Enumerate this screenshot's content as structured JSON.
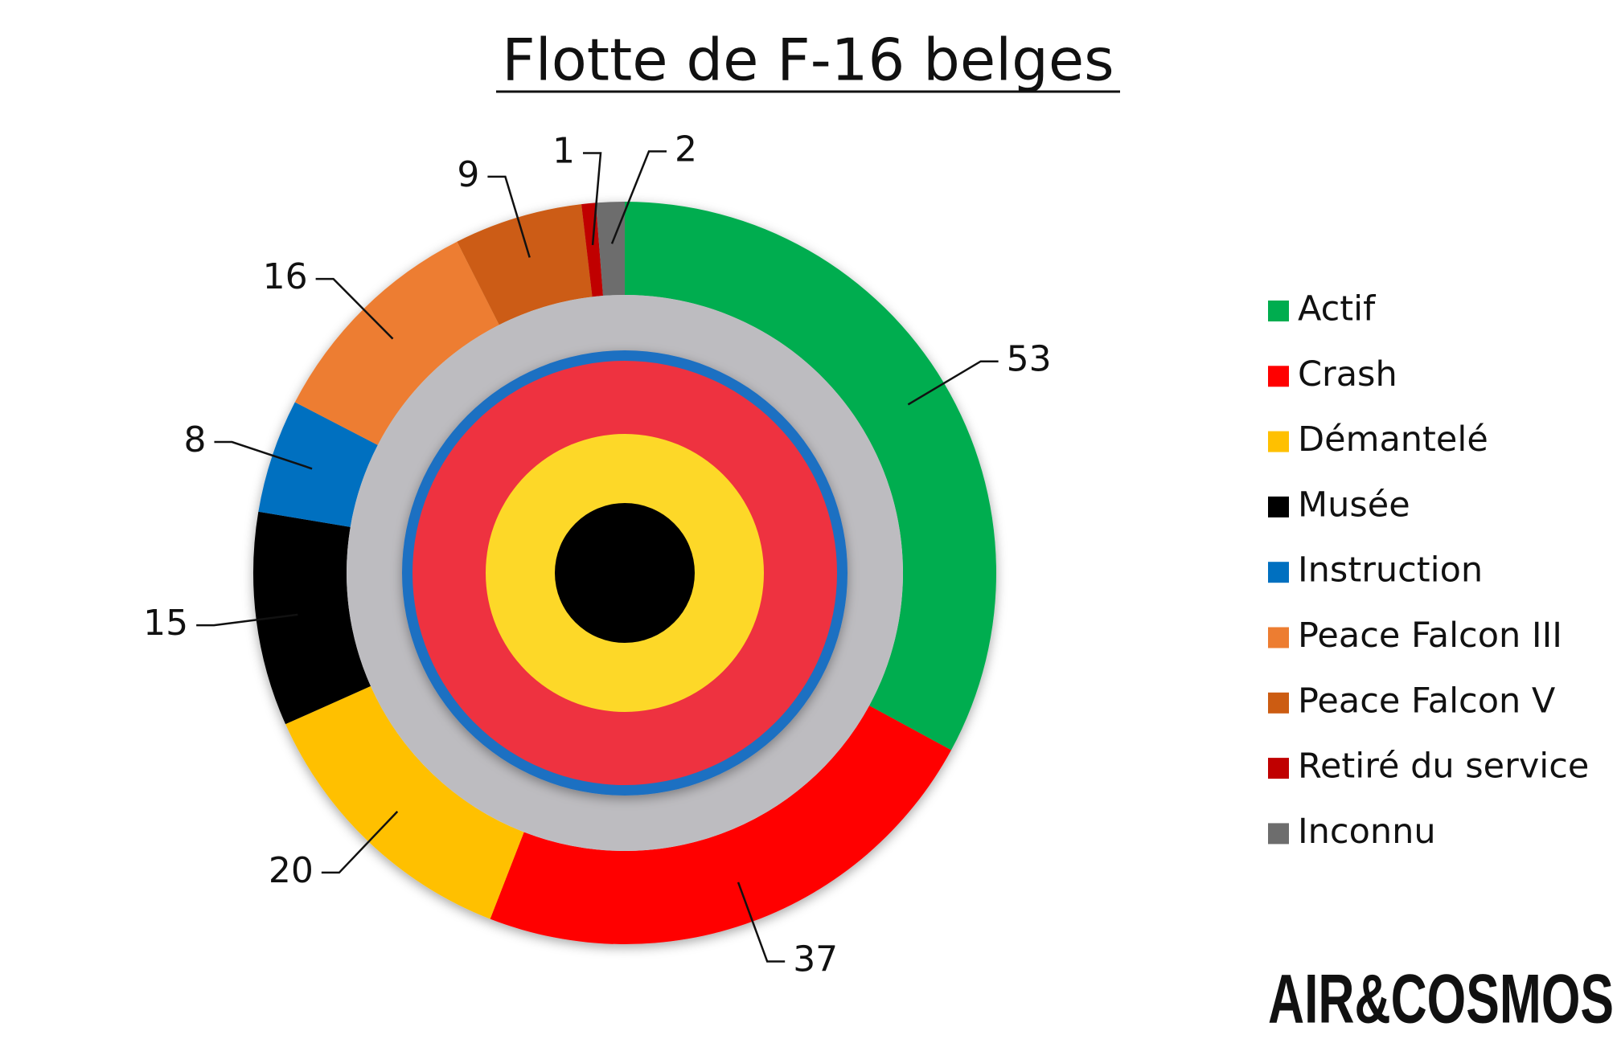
{
  "chart_data": {
    "type": "donut",
    "title": "Flotte de F-16 belges",
    "categories": [
      "Actif",
      "Crash",
      "Démantelé",
      "Musée",
      "Instruction",
      "Peace Falcon III",
      "Peace Falcon V",
      "Retiré du service",
      "Inconnu"
    ],
    "values": [
      53,
      37,
      20,
      15,
      8,
      16,
      9,
      1,
      2
    ],
    "colors": [
      "#00ad4f",
      "#ff0000",
      "#ffc000",
      "#000000",
      "#0070c0",
      "#ed7d31",
      "#cc5c12",
      "#c00000",
      "#6d6d6d"
    ],
    "legend": "right"
  },
  "logo": "AIR&COSMOS"
}
